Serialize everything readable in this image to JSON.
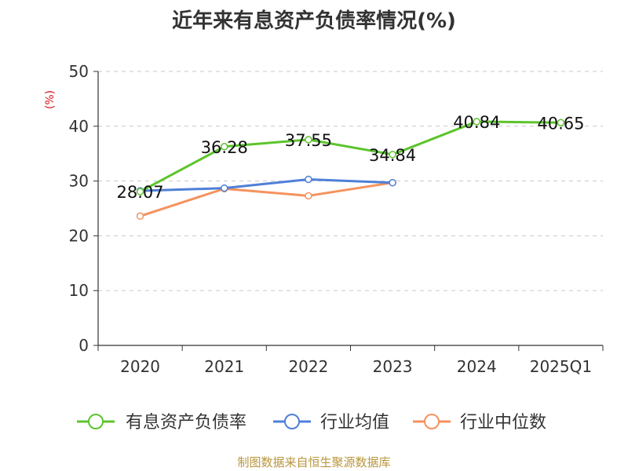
{
  "chart_data": {
    "type": "line",
    "title": "近年来有息资产负债率情况(%)",
    "ylabel": "(%)",
    "xlabel": "",
    "categories": [
      "2020",
      "2021",
      "2022",
      "2023",
      "2024",
      "2025Q1"
    ],
    "ylim": [
      0,
      50
    ],
    "yticks": [
      0,
      10,
      20,
      30,
      40,
      50
    ],
    "grid": true,
    "legend_position": "bottom",
    "series": [
      {
        "name": "有息资产负债率",
        "color": "#5cc42c",
        "values": [
          28.07,
          36.28,
          37.55,
          34.84,
          40.84,
          40.65
        ],
        "show_labels": true
      },
      {
        "name": "行业均值",
        "color": "#4f7fd8",
        "values": [
          28.2,
          28.7,
          30.3,
          29.7,
          null,
          null
        ],
        "show_labels": false
      },
      {
        "name": "行业中位数",
        "color": "#f5925e",
        "values": [
          23.6,
          28.6,
          27.3,
          29.7,
          null,
          null
        ],
        "show_labels": false
      }
    ]
  },
  "source": {
    "text": "制图数据来自恒生聚源数据库",
    "color": "#b8963c"
  }
}
